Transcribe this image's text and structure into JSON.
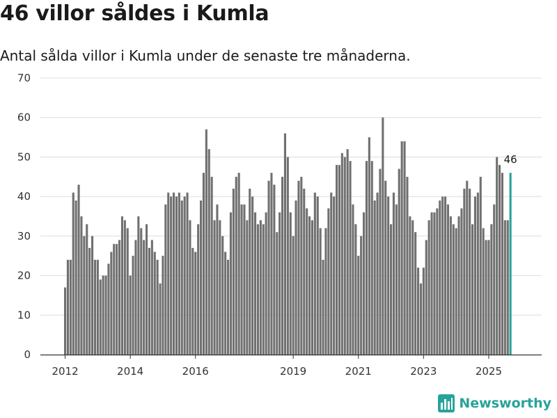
{
  "title": "46 villor såldes i Kumla",
  "subtitle": "Antal sålda villor i Kumla under de senaste tre månaderna.",
  "brand": {
    "name": "Newsworthy",
    "logo_icon": "bar-chart-logo-icon"
  },
  "colors": {
    "bar": "#707070",
    "highlight": "#27a39a",
    "grid": "#dcdcdc",
    "axis": "#333333"
  },
  "chart_data": {
    "type": "bar",
    "title": "46 villor såldes i Kumla",
    "xlabel": "",
    "ylabel": "",
    "ylim": [
      0,
      70
    ],
    "yticks": [
      0,
      10,
      20,
      30,
      40,
      50,
      60,
      70
    ],
    "x_start": "2012-01",
    "xticks": [
      {
        "label": "2012",
        "index": 0
      },
      {
        "label": "2014",
        "index": 24
      },
      {
        "label": "2016",
        "index": 48
      },
      {
        "label": "2019",
        "index": 84
      },
      {
        "label": "2021",
        "index": 108
      },
      {
        "label": "2023",
        "index": 132
      },
      {
        "label": "2025",
        "index": 156
      }
    ],
    "values": [
      17,
      24,
      24,
      41,
      39,
      43,
      35,
      30,
      33,
      27,
      30,
      24,
      24,
      19,
      20,
      20,
      23,
      26,
      28,
      28,
      29,
      35,
      34,
      32,
      20,
      25,
      29,
      35,
      32,
      29,
      33,
      27,
      29,
      26,
      24,
      18,
      25,
      38,
      41,
      40,
      41,
      40,
      41,
      39,
      40,
      41,
      34,
      27,
      26,
      33,
      39,
      46,
      57,
      52,
      45,
      34,
      38,
      34,
      30,
      26,
      24,
      36,
      42,
      45,
      46,
      38,
      38,
      34,
      42,
      40,
      36,
      33,
      34,
      33,
      36,
      44,
      46,
      43,
      31,
      36,
      45,
      56,
      50,
      36,
      30,
      39,
      44,
      45,
      42,
      37,
      35,
      34,
      41,
      40,
      32,
      24,
      32,
      37,
      41,
      40,
      48,
      48,
      51,
      50,
      52,
      49,
      38,
      33,
      25,
      30,
      36,
      49,
      55,
      49,
      39,
      41,
      47,
      60,
      44,
      40,
      33,
      41,
      38,
      47,
      54,
      54,
      45,
      35,
      34,
      31,
      22,
      18,
      22,
      29,
      34,
      36,
      36,
      37,
      39,
      40,
      40,
      38,
      35,
      33,
      32,
      35,
      37,
      42,
      44,
      42,
      33,
      40,
      41,
      45,
      32,
      29,
      29,
      33,
      38,
      50,
      48,
      46,
      34,
      34,
      46
    ],
    "highlight": {
      "index": 164,
      "value": 46,
      "label": "46"
    }
  }
}
